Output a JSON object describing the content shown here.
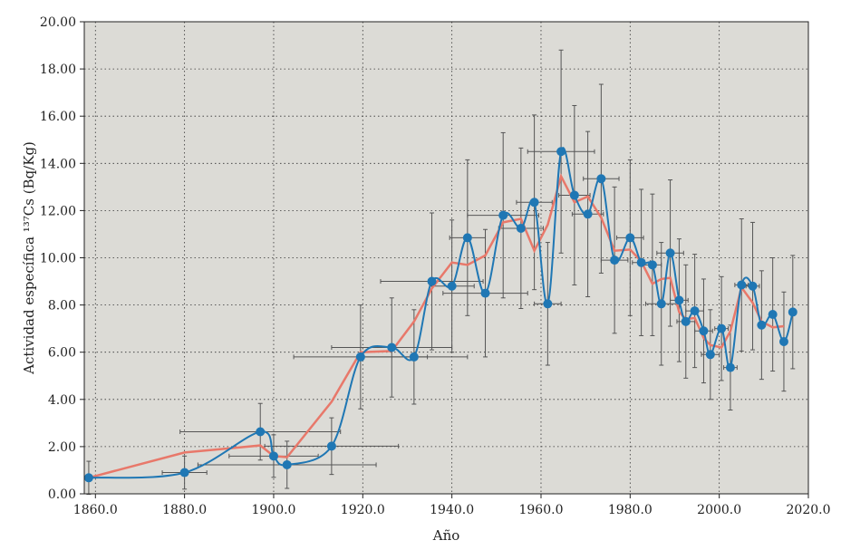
{
  "chart_data": {
    "type": "line",
    "title": "",
    "xlabel": "Año",
    "ylabel": "Actividad específica ¹³⁷Cs (Bq/Kg)",
    "xlim": [
      1857.5,
      2020
    ],
    "ylim": [
      0,
      20
    ],
    "x_ticks": [
      1860,
      1880,
      1900,
      1920,
      1940,
      1960,
      1980,
      2000,
      2020
    ],
    "x_tick_labels": [
      "1860.0",
      "1880.0",
      "1900.0",
      "1920.0",
      "1940.0",
      "1960.0",
      "1980.0",
      "2000.0",
      "2020.0"
    ],
    "y_ticks": [
      0,
      2,
      4,
      6,
      8,
      10,
      12,
      14,
      16,
      18,
      20
    ],
    "y_tick_labels": [
      "0.00",
      "2.00",
      "4.00",
      "6.00",
      "8.00",
      "10.00",
      "12.00",
      "14.00",
      "16.00",
      "18.00",
      "20.00"
    ],
    "grid": true,
    "background": "#dcdbd6",
    "colors": {
      "points": "#1f77b4",
      "smooth_line": "#1f77b4",
      "trend_line": "#e8786a",
      "error_bars": "#555555"
    },
    "points": [
      {
        "x": 1858.5,
        "y": 0.68,
        "yerr": 0.7,
        "xerr": 0
      },
      {
        "x": 1880.0,
        "y": 0.9,
        "yerr": 0.7,
        "xerr": 5.0
      },
      {
        "x": 1897.0,
        "y": 2.63,
        "yerr": 1.2,
        "xerr": 18.0
      },
      {
        "x": 1900.0,
        "y": 1.6,
        "yerr": 0.9,
        "xerr": 10.0
      },
      {
        "x": 1903.0,
        "y": 1.23,
        "yerr": 1.0,
        "xerr": 20.0
      },
      {
        "x": 1913.0,
        "y": 2.02,
        "yerr": 1.2,
        "xerr": 15.0
      },
      {
        "x": 1919.5,
        "y": 5.8,
        "yerr": 2.2,
        "xerr": 15.0
      },
      {
        "x": 1926.5,
        "y": 6.2,
        "yerr": 2.1,
        "xerr": 13.5
      },
      {
        "x": 1931.5,
        "y": 5.8,
        "yerr": 2.0,
        "xerr": 12.0
      },
      {
        "x": 1935.5,
        "y": 9.0,
        "yerr": 2.9,
        "xerr": 11.5
      },
      {
        "x": 1940.0,
        "y": 8.8,
        "yerr": 2.8,
        "xerr": 5.0
      },
      {
        "x": 1943.5,
        "y": 10.85,
        "yerr": 3.3,
        "xerr": 4.0
      },
      {
        "x": 1947.5,
        "y": 8.5,
        "yerr": 2.7,
        "xerr": 9.5
      },
      {
        "x": 1951.5,
        "y": 11.8,
        "yerr": 3.5,
        "xerr": 8.0
      },
      {
        "x": 1955.5,
        "y": 11.25,
        "yerr": 3.4,
        "xerr": 5.0
      },
      {
        "x": 1958.5,
        "y": 12.35,
        "yerr": 3.7,
        "xerr": 4.0
      },
      {
        "x": 1961.5,
        "y": 8.05,
        "yerr": 2.6,
        "xerr": 3.0
      },
      {
        "x": 1964.5,
        "y": 14.5,
        "yerr": 4.3,
        "xerr": 7.5
      },
      {
        "x": 1967.5,
        "y": 12.65,
        "yerr": 3.8,
        "xerr": 3.5
      },
      {
        "x": 1970.5,
        "y": 11.85,
        "yerr": 3.5,
        "xerr": 3.5
      },
      {
        "x": 1973.5,
        "y": 13.35,
        "yerr": 4.0,
        "xerr": 4.0
      },
      {
        "x": 1976.5,
        "y": 9.9,
        "yerr": 3.1,
        "xerr": 3.0
      },
      {
        "x": 1980.0,
        "y": 10.85,
        "yerr": 3.3,
        "xerr": 3.0
      },
      {
        "x": 1982.5,
        "y": 9.8,
        "yerr": 3.1,
        "xerr": 2.0
      },
      {
        "x": 1985.0,
        "y": 9.7,
        "yerr": 3.0,
        "xerr": 2.0
      },
      {
        "x": 1987.0,
        "y": 8.05,
        "yerr": 2.6,
        "xerr": 3.5
      },
      {
        "x": 1989.0,
        "y": 10.2,
        "yerr": 3.1,
        "xerr": 3.0
      },
      {
        "x": 1991.0,
        "y": 8.2,
        "yerr": 2.6,
        "xerr": 2.0
      },
      {
        "x": 1992.5,
        "y": 7.3,
        "yerr": 2.4,
        "xerr": 2.0
      },
      {
        "x": 1994.5,
        "y": 7.75,
        "yerr": 2.4,
        "xerr": 2.0
      },
      {
        "x": 1996.5,
        "y": 6.9,
        "yerr": 2.2,
        "xerr": 2.0
      },
      {
        "x": 1998.0,
        "y": 5.9,
        "yerr": 1.9,
        "xerr": 2.0
      },
      {
        "x": 2000.5,
        "y": 7.0,
        "yerr": 2.2,
        "xerr": 1.5
      },
      {
        "x": 2002.5,
        "y": 5.35,
        "yerr": 1.8,
        "xerr": 1.5
      },
      {
        "x": 2005.0,
        "y": 8.85,
        "yerr": 2.8,
        "xerr": 1.5
      },
      {
        "x": 2007.5,
        "y": 8.8,
        "yerr": 2.7,
        "xerr": 1.5
      },
      {
        "x": 2009.5,
        "y": 7.15,
        "yerr": 2.3,
        "xerr": 0
      },
      {
        "x": 2012.0,
        "y": 7.6,
        "yerr": 2.4,
        "xerr": 0
      },
      {
        "x": 2014.5,
        "y": 6.45,
        "yerr": 2.1,
        "xerr": 0
      },
      {
        "x": 2016.5,
        "y": 7.7,
        "yerr": 2.4,
        "xerr": 0
      }
    ],
    "trend_series": {
      "x": [
        1858.5,
        1880.0,
        1897.0,
        1900.0,
        1903.0,
        1913.0,
        1919.5,
        1926.5,
        1931.5,
        1935.5,
        1940.0,
        1943.5,
        1947.5,
        1951.5,
        1955.5,
        1958.5,
        1961.5,
        1964.5,
        1967.5,
        1970.5,
        1973.5,
        1976.5,
        1980.0,
        1982.5,
        1985.0,
        1987.0,
        1989.0,
        1991.0,
        1992.5,
        1994.5,
        1996.5,
        1998.0,
        2000.5,
        2002.5,
        2005.0,
        2007.5,
        2009.5,
        2012.0,
        2014.5
      ],
      "y": [
        0.68,
        1.75,
        2.05,
        1.6,
        1.55,
        3.9,
        6.0,
        6.05,
        7.3,
        8.7,
        9.8,
        9.7,
        10.1,
        11.5,
        11.65,
        10.3,
        11.4,
        13.45,
        12.35,
        12.6,
        11.7,
        10.3,
        10.35,
        9.85,
        8.9,
        9.1,
        9.15,
        7.7,
        7.4,
        7.45,
        6.6,
        6.3,
        6.2,
        6.9,
        8.75,
        8.1,
        7.3,
        7.05,
        7.1
      ]
    }
  }
}
